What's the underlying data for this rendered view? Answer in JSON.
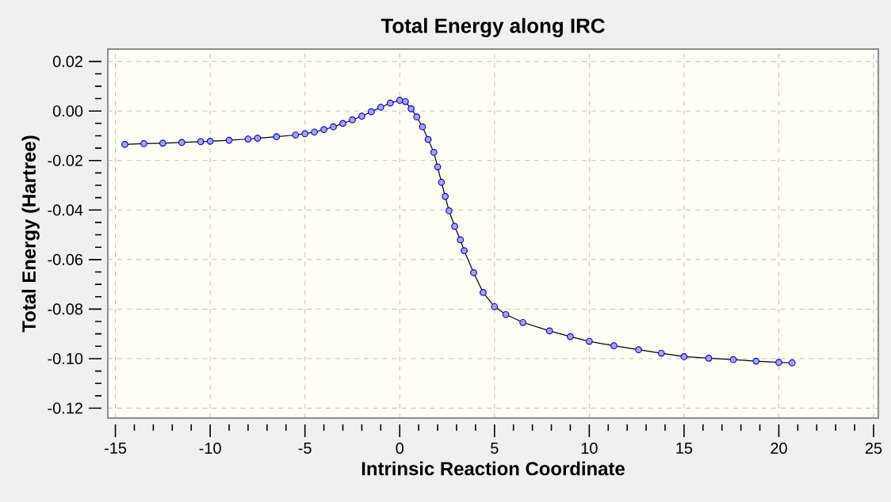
{
  "chart_data": {
    "type": "line",
    "title": "Total Energy along IRC",
    "xlabel": "Intrinsic Reaction Coordinate",
    "ylabel": "Total Energy (Hartree)",
    "xlim": [
      -15.4,
      25.25
    ],
    "ylim": [
      -0.124,
      0.025
    ],
    "xticks": [
      -15,
      -10,
      -5,
      0,
      5,
      10,
      15,
      20,
      25
    ],
    "yticks": [
      0.02,
      {
        "value": 0,
        "label": "0.00"
      },
      -0.02,
      -0.04,
      -0.06,
      -0.08,
      {
        "value": -0.1,
        "label": "-0.10"
      },
      -0.12
    ],
    "grid": true,
    "marker": "circle",
    "line_style": "solid",
    "series": [
      {
        "color": "#0000ff",
        "x": [
          -14.5,
          -13.5,
          -12.5,
          -11.5,
          -10.5,
          -10,
          -9,
          -8,
          -7.5,
          -6.5,
          -5.5,
          -5,
          -4.5,
          -4,
          -3.5,
          -3,
          -2.5,
          -2,
          -1.5,
          -1,
          -0.5,
          0,
          0.3,
          0.6,
          0.9,
          1.2,
          1.5,
          1.8,
          2.0,
          2.2,
          2.4,
          2.6,
          2.9,
          3.2,
          3.4,
          3.9,
          4.4,
          5,
          5.6,
          6.5,
          7.9,
          9,
          10,
          11.3,
          12.6,
          13.8,
          15,
          16.3,
          17.6,
          18.8,
          20,
          20.7
        ],
        "values": [
          -0.0135,
          -0.0132,
          -0.013,
          -0.0127,
          -0.0124,
          -0.0122,
          -0.0118,
          -0.0113,
          -0.011,
          -0.0104,
          -0.0097,
          -0.0092,
          -0.0085,
          -0.0075,
          -0.0064,
          -0.005,
          -0.0036,
          -0.0021,
          -0.0003,
          0.0015,
          0.0032,
          0.0043,
          0.0038,
          0.0009,
          -0.0024,
          -0.0064,
          -0.0115,
          -0.0167,
          -0.0226,
          -0.0288,
          -0.0345,
          -0.0403,
          -0.0466,
          -0.052,
          -0.0564,
          -0.0653,
          -0.0733,
          -0.079,
          -0.0822,
          -0.0854,
          -0.0888,
          -0.0911,
          -0.093,
          -0.0948,
          -0.0964,
          -0.0978,
          -0.0992,
          -0.0998,
          -0.1004,
          -0.101,
          -0.1015,
          -0.1017
        ]
      }
    ]
  }
}
